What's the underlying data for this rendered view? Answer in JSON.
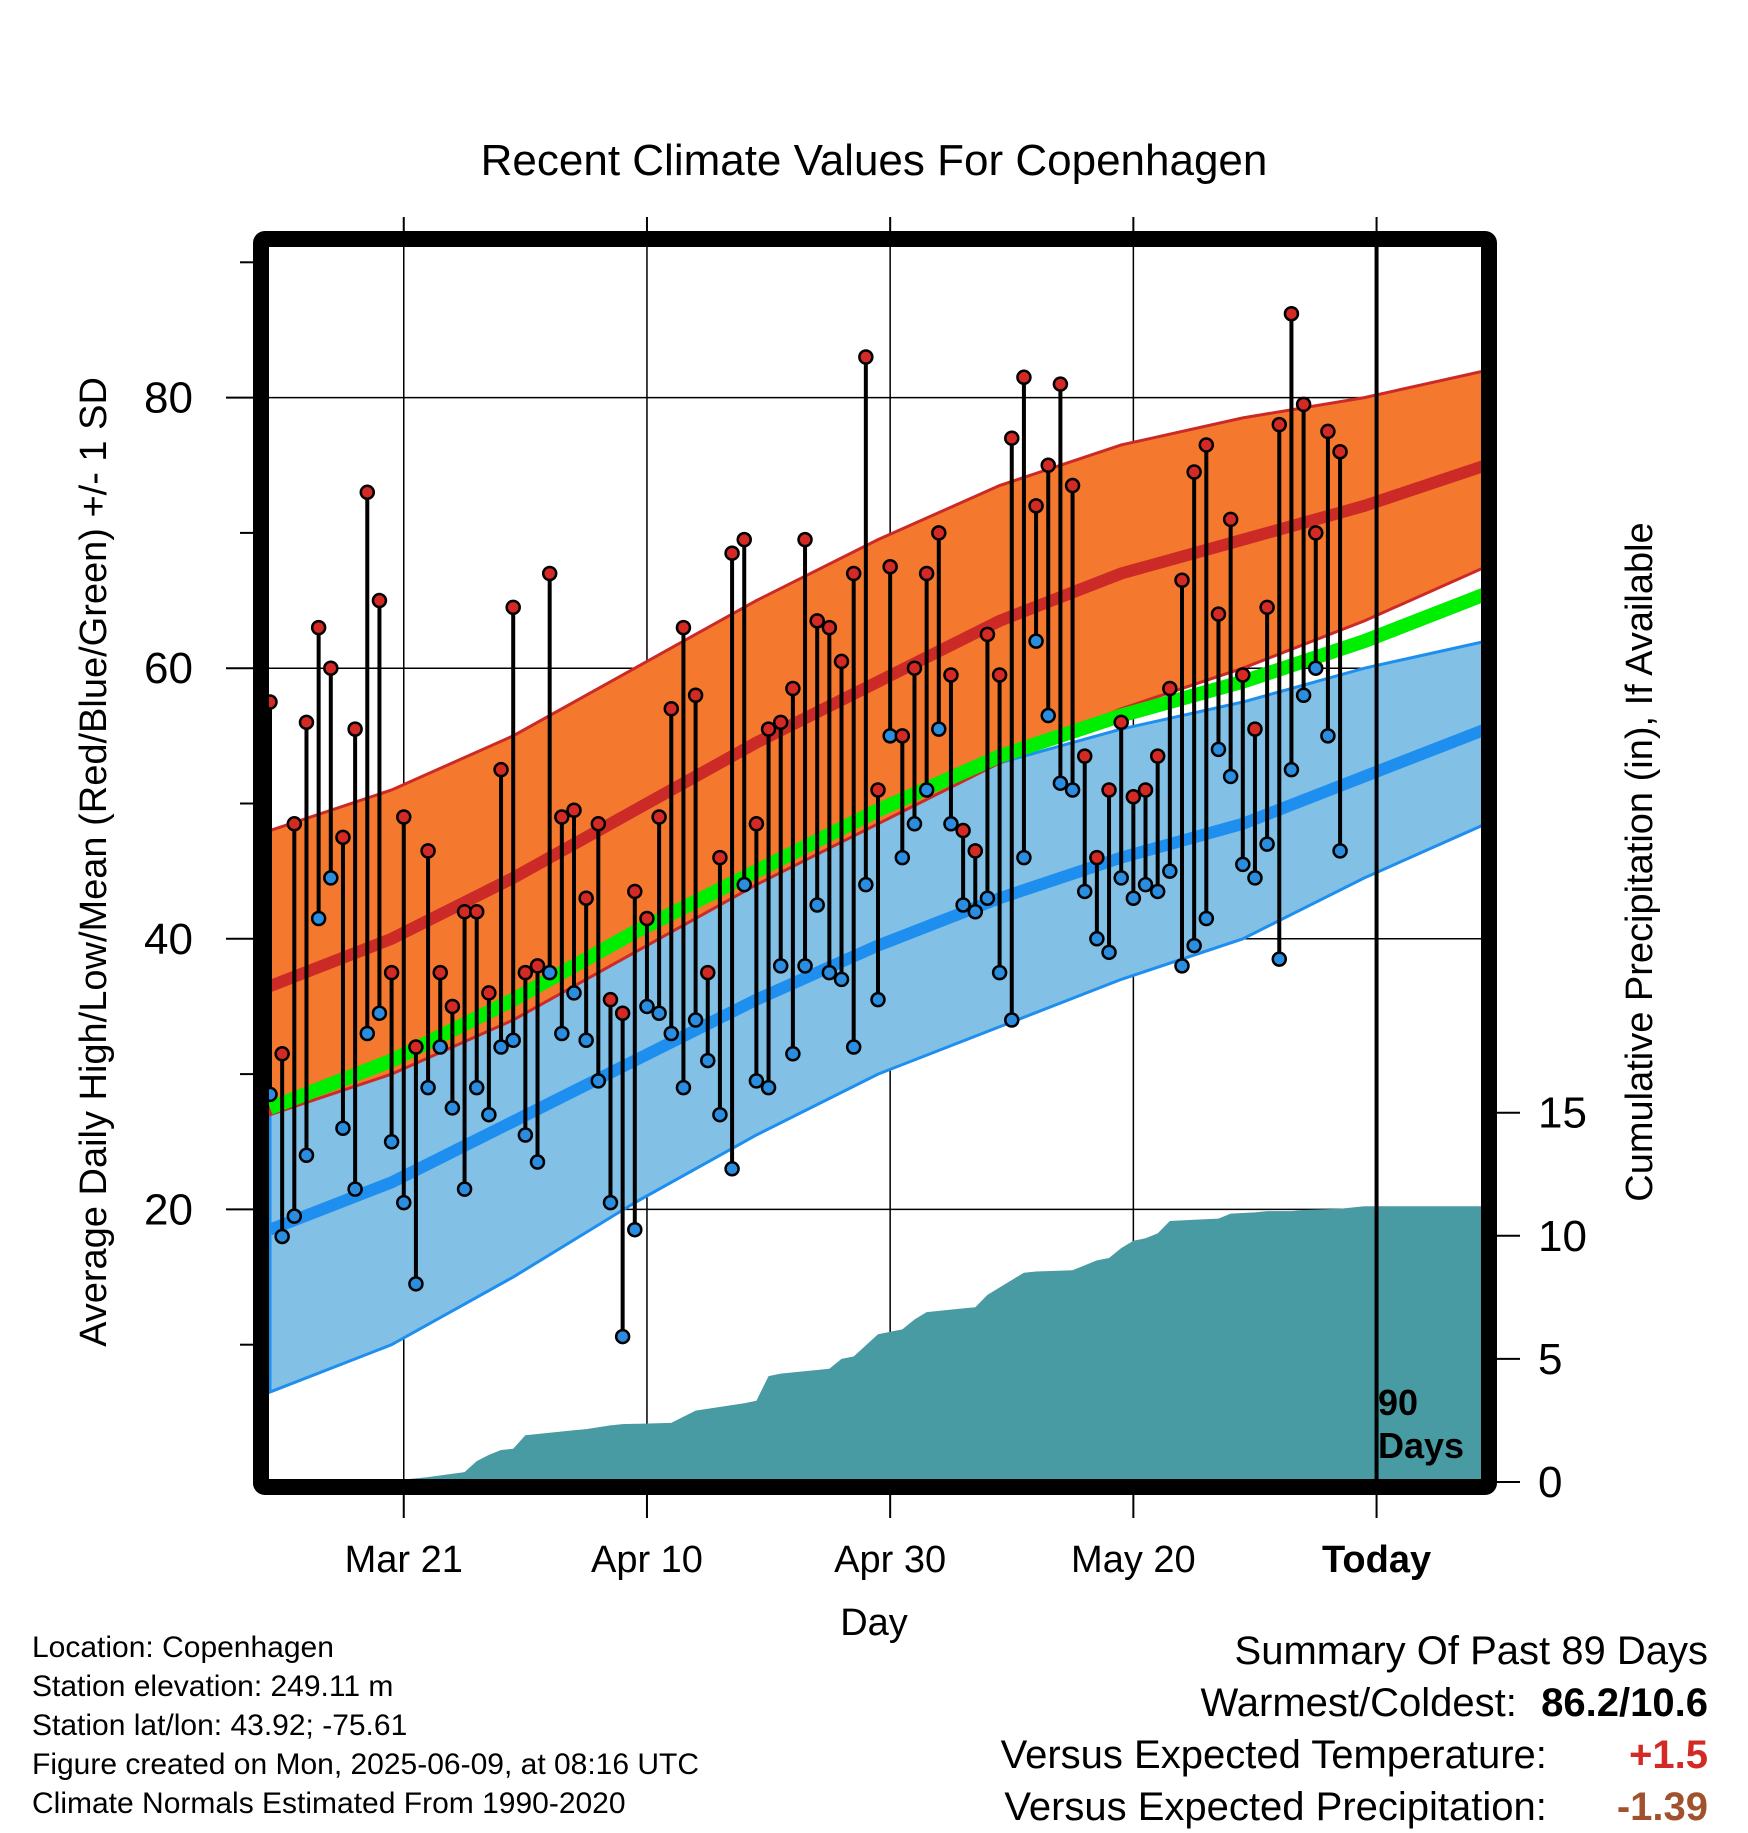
{
  "chart_data": {
    "type": "line",
    "title": "Recent Climate Values For Copenhagen",
    "xlabel": "Day",
    "ylabel": "Average Daily High/Low/Mean (Red/Blue/Green) +/- 1 SD",
    "y2label": "Cumulative Precipitation (in), If Available",
    "ylim": [
      0,
      92
    ],
    "y2lim": [
      0,
      25
    ],
    "x_tick_labels": [
      "Mar 21",
      "Apr 10",
      "Apr 30",
      "May 20",
      "Today"
    ],
    "x_tick_days": [
      11,
      31,
      51,
      71,
      91
    ],
    "y_ticks": [
      20,
      40,
      60,
      80
    ],
    "y2_ticks": [
      0,
      5,
      10,
      15
    ],
    "today_marker": {
      "line1": "90",
      "line2": "Days"
    },
    "grid": true,
    "colors": {
      "high_band": "#f4792e",
      "high_line": "#cc2a27",
      "low_band": "#82c0e6",
      "low_line": "#1e8fef",
      "mean_line": "#00ee00",
      "precip": "#489aa3",
      "high_marker": "#d42a25",
      "low_marker": "#2a8de0"
    },
    "normals": {
      "days": [
        0,
        10,
        20,
        30,
        40,
        50,
        60,
        70,
        80,
        90,
        100
      ],
      "high_mean": [
        36.5,
        40.0,
        44.5,
        49.5,
        54.5,
        59.0,
        63.5,
        67.0,
        69.5,
        72.0,
        75.0
      ],
      "high_upper": [
        48.0,
        51.0,
        55.0,
        60.0,
        65.0,
        69.5,
        73.5,
        76.5,
        78.5,
        80.0,
        82.0
      ],
      "high_lower": [
        27.0,
        30.0,
        34.0,
        39.0,
        44.0,
        48.5,
        53.0,
        57.0,
        60.0,
        63.5,
        67.5
      ],
      "low_mean": [
        18.5,
        22.0,
        26.5,
        31.0,
        35.5,
        39.5,
        43.0,
        46.0,
        48.5,
        52.0,
        55.5
      ],
      "low_upper": [
        30.5,
        34.0,
        38.0,
        42.0,
        46.0,
        50.0,
        53.0,
        55.5,
        57.5,
        60.0,
        62.0
      ],
      "low_lower": [
        6.5,
        10.0,
        15.0,
        20.5,
        25.5,
        30.0,
        33.5,
        37.0,
        40.0,
        44.5,
        48.5
      ],
      "mean": [
        27.5,
        31.0,
        35.5,
        40.5,
        45.0,
        49.5,
        53.5,
        56.5,
        59.0,
        62.0,
        65.5
      ]
    },
    "precip_days": [
      10,
      13,
      16,
      17,
      18,
      19,
      20,
      21,
      23,
      24,
      25,
      26,
      28,
      29,
      33,
      35,
      39,
      40,
      41,
      42,
      46,
      47,
      48,
      50,
      52,
      53,
      54,
      56,
      57,
      58,
      59,
      62,
      63,
      66,
      68,
      69,
      70,
      71,
      72,
      73,
      74,
      76,
      78,
      79,
      81,
      82,
      84,
      85,
      88,
      90,
      100
    ],
    "precip_cum": [
      0.05,
      0.2,
      0.4,
      0.85,
      1.1,
      1.3,
      1.35,
      1.9,
      2.0,
      2.05,
      2.1,
      2.15,
      2.3,
      2.35,
      2.4,
      2.9,
      3.2,
      3.3,
      4.3,
      4.4,
      4.6,
      5.0,
      5.1,
      6.0,
      6.2,
      6.6,
      6.9,
      7.0,
      7.05,
      7.1,
      7.6,
      8.5,
      8.55,
      8.6,
      9.0,
      9.1,
      9.5,
      9.8,
      9.9,
      10.1,
      10.6,
      10.65,
      10.7,
      10.9,
      10.95,
      11.0,
      11.0,
      11.05,
      11.1,
      11.2,
      11.2
    ],
    "days": [
      0,
      1,
      2,
      3,
      4,
      5,
      6,
      7,
      8,
      9,
      10,
      11,
      12,
      13,
      14,
      15,
      16,
      17,
      18,
      19,
      20,
      21,
      22,
      23,
      24,
      25,
      26,
      27,
      28,
      29,
      30,
      31,
      32,
      33,
      34,
      35,
      36,
      37,
      38,
      39,
      40,
      41,
      42,
      43,
      44,
      45,
      46,
      47,
      48,
      49,
      50,
      51,
      52,
      53,
      54,
      55,
      56,
      57,
      58,
      59,
      60,
      61,
      62,
      63,
      64,
      65,
      66,
      67,
      68,
      69,
      70,
      71,
      72,
      73,
      74,
      75,
      76,
      77,
      78,
      79,
      80,
      81,
      82,
      83,
      84,
      85,
      86,
      87,
      88
    ],
    "highs": [
      57.5,
      31.5,
      48.5,
      56.0,
      63.0,
      60.0,
      47.5,
      55.5,
      73.0,
      65.0,
      37.5,
      49.0,
      32.0,
      46.5,
      37.5,
      35.0,
      42.0,
      42.0,
      36.0,
      52.5,
      64.5,
      37.5,
      38.0,
      67.0,
      49.0,
      49.5,
      43.0,
      48.5,
      35.5,
      34.5,
      43.5,
      41.5,
      49.0,
      57.0,
      63.0,
      58.0,
      37.5,
      46.0,
      68.5,
      69.5,
      48.5,
      55.5,
      56.0,
      58.5,
      69.5,
      63.5,
      63.0,
      60.5,
      67.0,
      83.0,
      51.0,
      67.5,
      55.0,
      60.0,
      67.0,
      70.0,
      59.5,
      48.0,
      46.5,
      62.5,
      59.5,
      77.0,
      81.5,
      72.0,
      75.0,
      81.0,
      73.5,
      53.5,
      46.0,
      51.0,
      56.0,
      50.5,
      51.0,
      53.5,
      58.5,
      66.5,
      74.5,
      76.5,
      64.0,
      71.0,
      59.5,
      55.5,
      64.5,
      78.0,
      86.2,
      79.5,
      70.0,
      77.5,
      76.0
    ],
    "lows": [
      28.5,
      18.0,
      19.5,
      24.0,
      41.5,
      44.5,
      26.0,
      21.5,
      33.0,
      34.5,
      25.0,
      20.5,
      14.5,
      29.0,
      32.0,
      27.5,
      21.5,
      29.0,
      27.0,
      32.0,
      32.5,
      25.5,
      23.5,
      37.5,
      33.0,
      36.0,
      32.5,
      29.5,
      20.5,
      10.6,
      18.5,
      35.0,
      34.5,
      33.0,
      29.0,
      34.0,
      31.0,
      27.0,
      23.0,
      44.0,
      29.5,
      29.0,
      38.0,
      31.5,
      38.0,
      42.5,
      37.5,
      37.0,
      32.0,
      44.0,
      35.5,
      55.0,
      46.0,
      48.5,
      51.0,
      55.5,
      48.5,
      42.5,
      42.0,
      43.0,
      37.5,
      34.0,
      46.0,
      62.0,
      56.5,
      51.5,
      51.0,
      43.5,
      40.0,
      39.0,
      44.5,
      43.0,
      44.0,
      43.5,
      45.0,
      38.0,
      39.5,
      41.5,
      54.0,
      52.0,
      45.5,
      44.5,
      47.0,
      38.5,
      52.5,
      58.0,
      60.0,
      55.0,
      46.5
    ]
  },
  "footer": {
    "location": "Location: Copenhagen",
    "elevation": "Station elevation: 249.11 m",
    "latlon": "Station lat/lon: 43.92; -75.61",
    "created": "Figure created on Mon, 2025-06-09, at 08:16 UTC",
    "normals": "Climate Normals Estimated From 1990-2020"
  },
  "summary": {
    "heading": "Summary Of Past 89 Days",
    "warm_label": "Warmest/Coldest:",
    "warm_value": "86.2/10.6",
    "temp_label": "Versus Expected Temperature:",
    "temp_value": "+1.5",
    "temp_color": "#d42a25",
    "precip_label": "Versus Expected Precipitation:",
    "precip_value": "-1.39",
    "precip_color": "#a0522d"
  }
}
